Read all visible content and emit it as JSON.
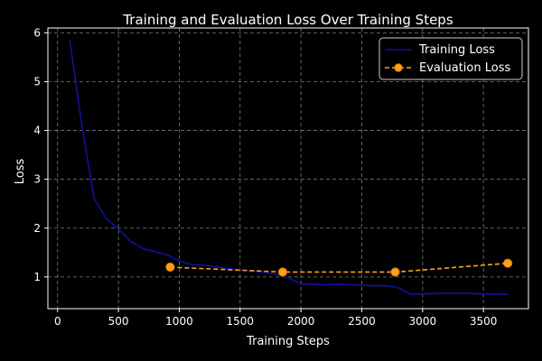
{
  "chart_data": {
    "type": "line",
    "title": "Training and Evaluation Loss Over Training Steps",
    "xlabel": "Training Steps",
    "ylabel": "Loss",
    "xlim": [
      -80,
      3870
    ],
    "ylim": [
      0.35,
      6.1
    ],
    "xticks": [
      0,
      500,
      1000,
      1500,
      2000,
      2500,
      3000,
      3500
    ],
    "yticks": [
      1,
      2,
      3,
      4,
      5,
      6
    ],
    "grid": true,
    "legend_position": "top-right",
    "background": "#000000",
    "series": [
      {
        "name": "Training Loss",
        "color": "#1010a0",
        "linestyle": "solid",
        "marker": "none",
        "x": [
          100,
          200,
          300,
          400,
          500,
          600,
          700,
          800,
          900,
          1000,
          1100,
          1200,
          1300,
          1400,
          1500,
          1600,
          1700,
          1800,
          1900,
          2000,
          2100,
          2200,
          2300,
          2400,
          2500,
          2600,
          2700,
          2800,
          2900,
          3000,
          3100,
          3200,
          3300,
          3400,
          3500,
          3600,
          3700
        ],
        "y": [
          5.85,
          4.1,
          2.6,
          2.2,
          1.98,
          1.73,
          1.58,
          1.52,
          1.45,
          1.33,
          1.25,
          1.24,
          1.21,
          1.17,
          1.14,
          1.12,
          1.1,
          1.05,
          0.98,
          0.85,
          0.85,
          0.84,
          0.85,
          0.84,
          0.83,
          0.82,
          0.82,
          0.78,
          0.65,
          0.65,
          0.66,
          0.66,
          0.66,
          0.66,
          0.65,
          0.65,
          0.64
        ]
      },
      {
        "name": "Evaluation Loss",
        "color": "#ff9f1c",
        "linestyle": "dashed",
        "marker": "circle",
        "x": [
          925,
          1850,
          2775,
          3700
        ],
        "y": [
          1.2,
          1.1,
          1.1,
          1.28
        ]
      }
    ]
  }
}
